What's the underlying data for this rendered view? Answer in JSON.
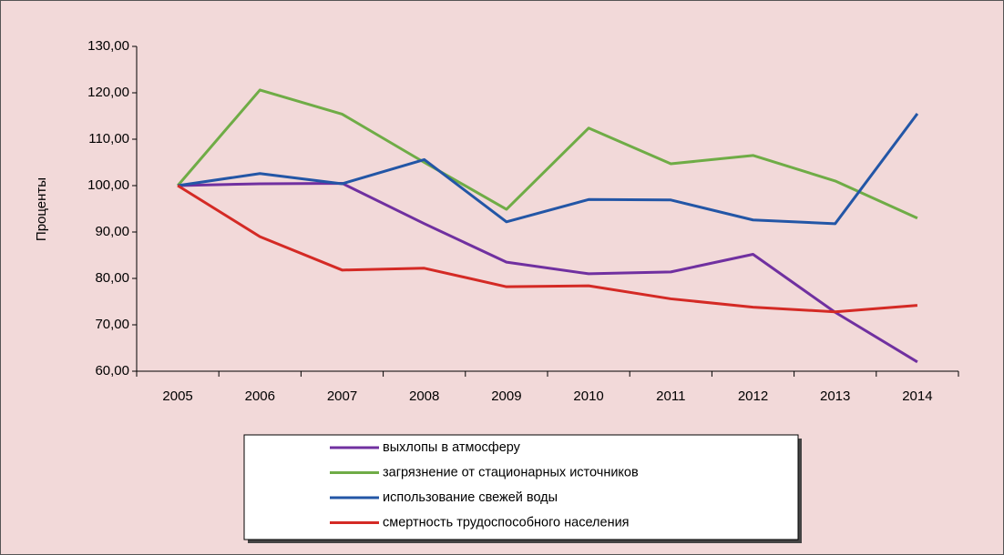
{
  "chart_data": {
    "type": "line",
    "ylabel": "Проценты",
    "categories": [
      "2005",
      "2006",
      "2007",
      "2008",
      "2009",
      "2010",
      "2011",
      "2012",
      "2013",
      "2014"
    ],
    "series": [
      {
        "name": "выхлопы в атмосферу",
        "color": "#7030a0",
        "values": [
          100,
          100.4,
          100.5,
          91.8,
          83.5,
          81,
          81.4,
          85.2,
          72.7,
          62
        ]
      },
      {
        "name": "загрязнение от стационарных источников",
        "color": "#6fac46",
        "values": [
          100,
          120.6,
          115.4,
          105,
          94.9,
          112.4,
          104.7,
          106.5,
          101,
          93
        ]
      },
      {
        "name": "использование свежей воды",
        "color": "#2356a6",
        "values": [
          100,
          102.6,
          100.4,
          105.6,
          92.2,
          97,
          96.9,
          92.6,
          91.8,
          115.5
        ]
      },
      {
        "name": "смертность трудоспособного населения",
        "color": "#d42a25",
        "values": [
          100,
          89,
          81.8,
          82.2,
          78.2,
          78.4,
          75.6,
          73.8,
          72.8,
          74.2
        ]
      }
    ],
    "ylim": [
      60,
      130
    ],
    "yticks": [
      {
        "value": 60,
        "label": "60,00"
      },
      {
        "value": 70,
        "label": "70,00"
      },
      {
        "value": 80,
        "label": "80,00"
      },
      {
        "value": 90,
        "label": "90,00"
      },
      {
        "value": 100,
        "label": "100,00"
      },
      {
        "value": 110,
        "label": "110,00"
      },
      {
        "value": 120,
        "label": "120,00"
      },
      {
        "value": 130,
        "label": "130,00"
      }
    ],
    "grid": false,
    "legend": "bottom"
  }
}
